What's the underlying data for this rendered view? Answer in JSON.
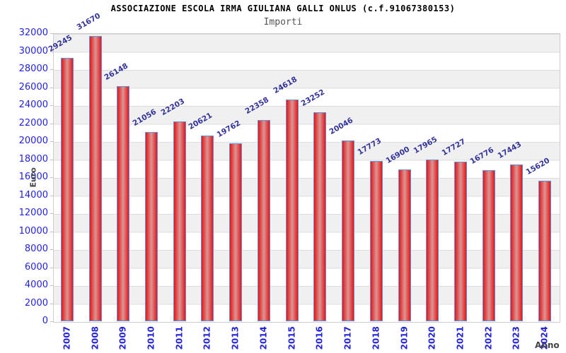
{
  "header": {
    "title": "ASSOCIAZIONE ESCOLA IRMA GIULIANA GALLI ONLUS (c.f.91067380153)",
    "subtitle": "Importi"
  },
  "chart_data": {
    "type": "bar",
    "title": "ASSOCIAZIONE ESCOLA IRMA GIULIANA GALLI ONLUS (c.f.91067380153)",
    "subtitle": "Importi",
    "xlabel": "Anno",
    "ylabel": "Euro",
    "categories": [
      "2007",
      "2008",
      "2009",
      "2010",
      "2011",
      "2012",
      "2013",
      "2014",
      "2015",
      "2016",
      "2017",
      "2018",
      "2019",
      "2020",
      "2021",
      "2022",
      "2023",
      "2024"
    ],
    "values": [
      29245,
      31670,
      26148,
      21056,
      22203,
      20621,
      19762,
      22358,
      24618,
      23252,
      20046,
      17773,
      16900,
      17965,
      17727,
      16776,
      17443,
      15620
    ],
    "ylim": [
      0,
      32000
    ],
    "ytick_step": 2000,
    "grid": "horizontal alternating bands, gray/white, gridline every 2000",
    "legend": "none",
    "colors": {
      "bar_edge_red": "#ed1216",
      "bar_center_light": "#d69897",
      "bar_border_blue": "#5a96e0",
      "axis_tick_text_blue": "#2222dd",
      "value_label_navy": "#333399",
      "band_gray": "#f0f0f0",
      "gridline_gray": "#dcdcdc",
      "axis_title_gray": "#444444",
      "subtitle_gray": "#555555",
      "plot_border": "#cccccc"
    }
  }
}
